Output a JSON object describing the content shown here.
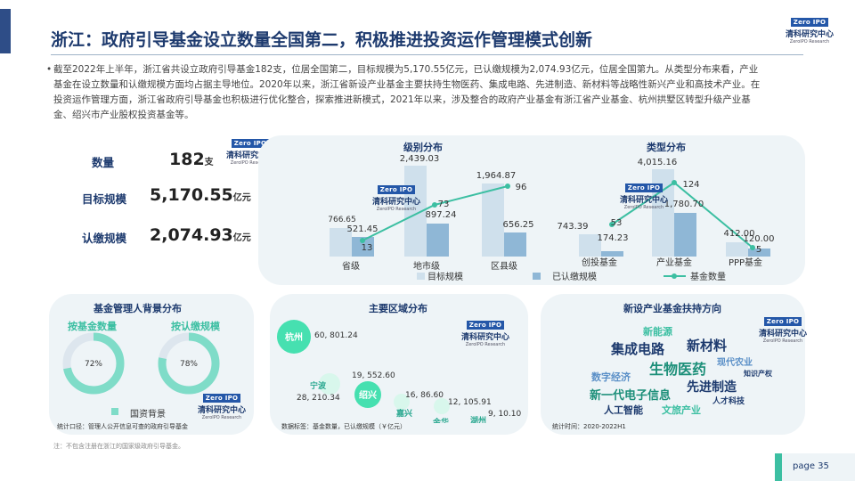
{
  "header": {
    "title": "浙江：政府引导基金设立数量全国第二，积极推进投资运作管理模式创新",
    "logo_text": "Zero IPO",
    "logo_cn": "清科研究中心",
    "logo_en": "ZeroIPO Research"
  },
  "bullet": "截至2022年上半年，浙江省共设立政府引导基金182支，位居全国第二，目标规模为5,170.55亿元，已认缴规模为2,074.93亿元，位居全国第九。从类型分布来看，产业基金在设立数量和认缴规模方面均占据主导地位。2020年以来，浙江省新设产业基金主要扶持生物医药、集成电路、先进制造、新材料等战略性新兴产业和高技术产业。在投资运作管理方面，浙江省政府引导基金也积极进行优化整合，探索推进新模式，2021年以来，涉及整合的政府产业基金有浙江省产业基金、杭州拱墅区转型升级产业基金、绍兴市产业股权投资基金等。",
  "kpis": [
    {
      "label": "数量",
      "value": "182",
      "unit": "支"
    },
    {
      "label": "目标规模",
      "value": "5,170.55",
      "unit": "亿元"
    },
    {
      "label": "认缴规模",
      "value": "2,074.93",
      "unit": "亿元"
    }
  ],
  "charts": {
    "level": {
      "title": "级别分布",
      "categories": [
        "省级",
        "地市级",
        "区县级"
      ],
      "target": [
        "766.65",
        "2,439.03",
        "1,964.87"
      ],
      "subscribed": [
        "521.45",
        "897.24",
        "656.25"
      ],
      "count": [
        "13",
        "73",
        "96"
      ]
    },
    "type": {
      "title": "类型分布",
      "categories": [
        "创投基金",
        "产业基金",
        "PPP基金"
      ],
      "target": [
        "743.39",
        "4,015.16",
        "412.00"
      ],
      "subscribed": [
        "174.23",
        "1,780.70",
        "120.00"
      ],
      "count": [
        "53",
        "124",
        "5"
      ]
    },
    "legend": {
      "target": "目标规模",
      "subscribed": "已认缴规模",
      "count": "基金数量"
    }
  },
  "chart_data": [
    {
      "type": "bar",
      "title": "级别分布",
      "categories": [
        "省级",
        "地市级",
        "区县级"
      ],
      "series": [
        {
          "name": "目标规模",
          "values": [
            766.65,
            2439.03,
            1964.87
          ]
        },
        {
          "name": "已认缴规模",
          "values": [
            521.45,
            897.24,
            656.25
          ]
        },
        {
          "name": "基金数量",
          "values": [
            13,
            73,
            96
          ]
        }
      ]
    },
    {
      "type": "bar",
      "title": "类型分布",
      "categories": [
        "创投基金",
        "产业基金",
        "PPP基金"
      ],
      "series": [
        {
          "name": "目标规模",
          "values": [
            743.39,
            4015.16,
            412.0
          ]
        },
        {
          "name": "已认缴规模",
          "values": [
            174.23,
            1780.7,
            120.0
          ]
        },
        {
          "name": "基金数量",
          "values": [
            53,
            124,
            5
          ]
        }
      ]
    },
    {
      "type": "pie",
      "title": "基金管理人背景分布",
      "series": [
        {
          "name": "按基金数量",
          "values": [
            72
          ]
        },
        {
          "name": "按认缴规模",
          "values": [
            78
          ]
        }
      ],
      "legend": [
        "国资背景"
      ]
    }
  ],
  "manager": {
    "title": "基金管理人背景分布",
    "donut1_label": "按基金数量",
    "donut1_value": "72%",
    "donut1_pct": 72,
    "donut2_label": "按认缴规模",
    "donut2_value": "78%",
    "donut2_pct": 78,
    "legend": "国资背景",
    "note": "统计口径：管理人公开信息可查的政府引导基金"
  },
  "regions": {
    "title": "主要区域分布",
    "items": [
      {
        "name": "杭州",
        "value": "60, 801.24"
      },
      {
        "name": "宁波",
        "value": "28, 210.34"
      },
      {
        "name": "绍兴",
        "value": "19, 552.60"
      },
      {
        "name": "嘉兴",
        "value": "16, 86.60"
      },
      {
        "name": "金华",
        "value": "12, 105.91"
      },
      {
        "name": "湖州",
        "value": "9, 10.10"
      }
    ],
    "note": "数据标签：基金数量，已认缴规模（￥亿元）"
  },
  "industries": {
    "title": "新设产业基金扶持方向",
    "words": [
      "新能源",
      "集成电路",
      "新材料",
      "生物医药",
      "现代农业",
      "数字经济",
      "知识产权",
      "新一代电子信息",
      "先进制造",
      "人工智能",
      "文旅产业",
      "人才科技"
    ],
    "note": "统计时间：2020-2022H1"
  },
  "footnote": "注：不包含注册在浙江的国家级政府引导基金。",
  "page": {
    "label": "page",
    "number": "35"
  },
  "colors": {
    "navy": "#1d3a6e",
    "teal": "#3cbfa2",
    "light_blue": "#cfe0ec",
    "mid_blue": "#8fb7d6",
    "panel": "#eef4f7"
  }
}
